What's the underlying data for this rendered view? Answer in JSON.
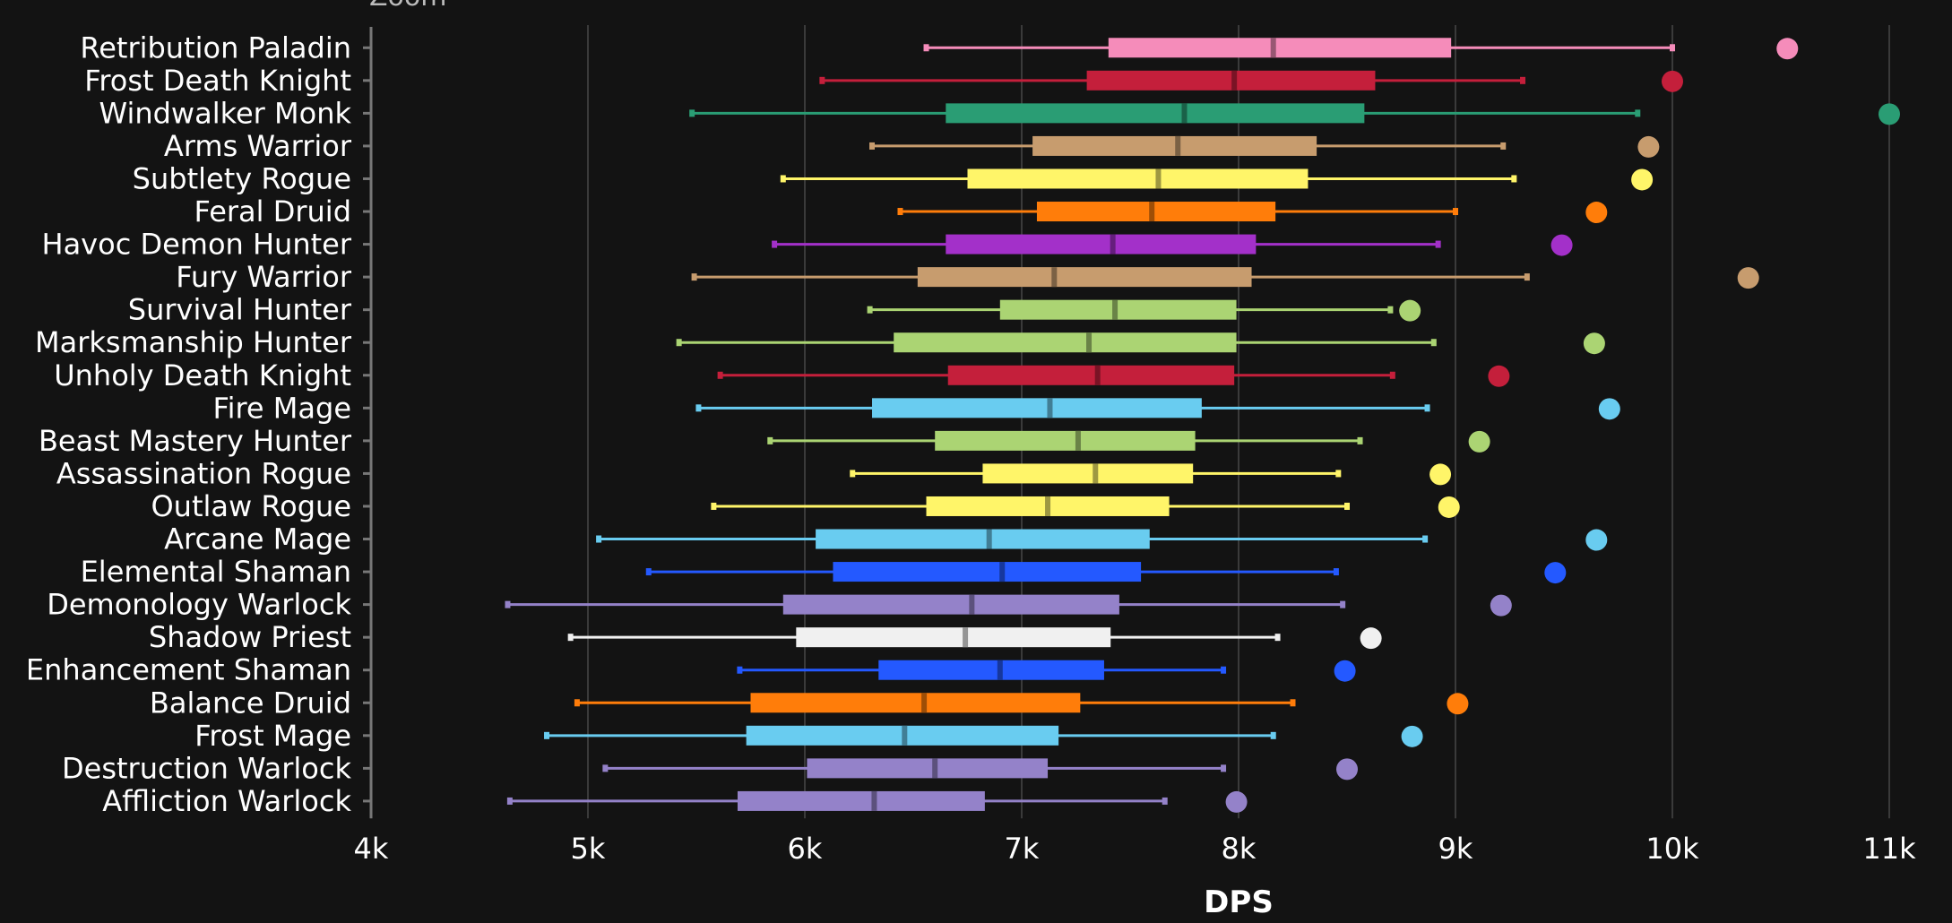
{
  "header": {
    "zoom_label": "Zoom"
  },
  "chart_data": {
    "type": "boxplot",
    "title": "",
    "xlabel": "DPS",
    "ylabel": "",
    "xlim": [
      4000,
      11000
    ],
    "xticks": [
      {
        "value": 4000,
        "label": "4k"
      },
      {
        "value": 5000,
        "label": "5k"
      },
      {
        "value": 6000,
        "label": "6k"
      },
      {
        "value": 7000,
        "label": "7k"
      },
      {
        "value": 8000,
        "label": "8k"
      },
      {
        "value": 9000,
        "label": "9k"
      },
      {
        "value": 10000,
        "label": "10k"
      },
      {
        "value": 11000,
        "label": "11k"
      }
    ],
    "grid": true,
    "legend": "none",
    "series": [
      {
        "name": "Retribution Paladin",
        "color": "#f58cba",
        "min": 6560,
        "q1": 7400,
        "median": 8160,
        "q3": 8980,
        "max": 10000,
        "outlier": 10530
      },
      {
        "name": "Frost Death Knight",
        "color": "#c41f3b",
        "min": 6080,
        "q1": 7300,
        "median": 7980,
        "q3": 8630,
        "max": 9310,
        "outlier": 10000
      },
      {
        "name": "Windwalker Monk",
        "color": "#2a9d74",
        "min": 5480,
        "q1": 6650,
        "median": 7750,
        "q3": 8580,
        "max": 9840,
        "outlier": 11000
      },
      {
        "name": "Arms Warrior",
        "color": "#c79c6e",
        "min": 6310,
        "q1": 7050,
        "median": 7720,
        "q3": 8360,
        "max": 9220,
        "outlier": 9890
      },
      {
        "name": "Subtlety Rogue",
        "color": "#fff569",
        "min": 5900,
        "q1": 6750,
        "median": 7630,
        "q3": 8320,
        "max": 9270,
        "outlier": 9860
      },
      {
        "name": "Feral Druid",
        "color": "#ff7d0a",
        "min": 6440,
        "q1": 7070,
        "median": 7600,
        "q3": 8170,
        "max": 9000,
        "outlier": 9650
      },
      {
        "name": "Havoc Demon Hunter",
        "color": "#a330c9",
        "min": 5860,
        "q1": 6650,
        "median": 7420,
        "q3": 8080,
        "max": 8920,
        "outlier": 9490
      },
      {
        "name": "Fury Warrior",
        "color": "#c79c6e",
        "min": 5490,
        "q1": 6520,
        "median": 7150,
        "q3": 8060,
        "max": 9330,
        "outlier": 10350
      },
      {
        "name": "Survival Hunter",
        "color": "#abd473",
        "min": 6300,
        "q1": 6900,
        "median": 7430,
        "q3": 7990,
        "max": 8700,
        "outlier": 8790
      },
      {
        "name": "Marksmanship Hunter",
        "color": "#abd473",
        "min": 5420,
        "q1": 6410,
        "median": 7310,
        "q3": 7990,
        "max": 8900,
        "outlier": 9640
      },
      {
        "name": "Unholy Death Knight",
        "color": "#c41f3b",
        "min": 5610,
        "q1": 6660,
        "median": 7350,
        "q3": 7980,
        "max": 8710,
        "outlier": 9200
      },
      {
        "name": "Fire Mage",
        "color": "#69ccf0",
        "min": 5510,
        "q1": 6310,
        "median": 7130,
        "q3": 7830,
        "max": 8870,
        "outlier": 9710
      },
      {
        "name": "Beast Mastery Hunter",
        "color": "#abd473",
        "min": 5840,
        "q1": 6600,
        "median": 7260,
        "q3": 7800,
        "max": 8560,
        "outlier": 9110
      },
      {
        "name": "Assassination Rogue",
        "color": "#fff569",
        "min": 6220,
        "q1": 6820,
        "median": 7340,
        "q3": 7790,
        "max": 8460,
        "outlier": 8930
      },
      {
        "name": "Outlaw Rogue",
        "color": "#fff569",
        "min": 5580,
        "q1": 6560,
        "median": 7120,
        "q3": 7680,
        "max": 8500,
        "outlier": 8970
      },
      {
        "name": "Arcane Mage",
        "color": "#69ccf0",
        "min": 5050,
        "q1": 6050,
        "median": 6850,
        "q3": 7590,
        "max": 8860,
        "outlier": 9650
      },
      {
        "name": "Elemental Shaman",
        "color": "#2459ff",
        "min": 5280,
        "q1": 6130,
        "median": 6910,
        "q3": 7550,
        "max": 8450,
        "outlier": 9460
      },
      {
        "name": "Demonology Warlock",
        "color": "#9482c9",
        "min": 4630,
        "q1": 5900,
        "median": 6770,
        "q3": 7450,
        "max": 8480,
        "outlier": 9210
      },
      {
        "name": "Shadow Priest",
        "color": "#f0f0f0",
        "min": 4920,
        "q1": 5960,
        "median": 6740,
        "q3": 7410,
        "max": 8180,
        "outlier": 8610
      },
      {
        "name": "Enhancement Shaman",
        "color": "#2459ff",
        "min": 5700,
        "q1": 6340,
        "median": 6900,
        "q3": 7380,
        "max": 7930,
        "outlier": 8490
      },
      {
        "name": "Balance Druid",
        "color": "#ff7d0a",
        "min": 4950,
        "q1": 5750,
        "median": 6550,
        "q3": 7270,
        "max": 8250,
        "outlier": 9010
      },
      {
        "name": "Frost Mage",
        "color": "#69ccf0",
        "min": 4810,
        "q1": 5730,
        "median": 6460,
        "q3": 7170,
        "max": 8160,
        "outlier": 8800
      },
      {
        "name": "Destruction Warlock",
        "color": "#9482c9",
        "min": 5080,
        "q1": 6010,
        "median": 6600,
        "q3": 7120,
        "max": 7930,
        "outlier": 8500
      },
      {
        "name": "Affliction Warlock",
        "color": "#9482c9",
        "min": 4640,
        "q1": 5690,
        "median": 6320,
        "q3": 6830,
        "max": 7660,
        "outlier": 7990
      }
    ]
  }
}
